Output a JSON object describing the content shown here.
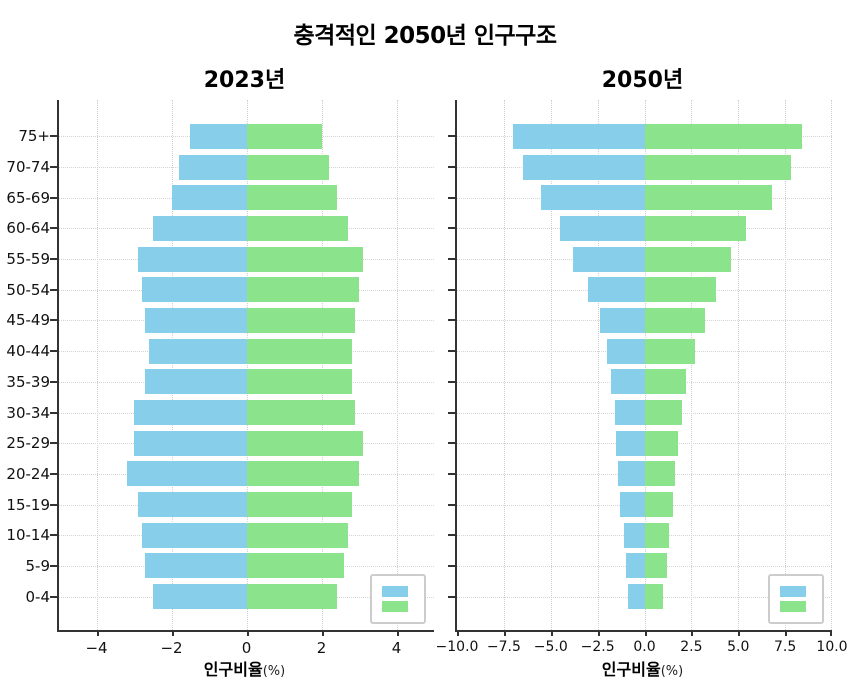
{
  "figure": {
    "title": "충격적인 2050년 인구구조"
  },
  "chart_data": [
    {
      "type": "bar",
      "subtype": "population-pyramid",
      "title": "2023년",
      "categories": [
        "75+",
        "70-74",
        "65-69",
        "60-64",
        "55-59",
        "50-54",
        "45-49",
        "40-44",
        "35-39",
        "30-34",
        "25-29",
        "20-24",
        "15-19",
        "10-14",
        "5-9",
        "0-4"
      ],
      "series": [
        {
          "name": "",
          "side": "left",
          "color": "#87CEEB",
          "values": [
            1.5,
            1.8,
            2.0,
            2.5,
            2.9,
            2.8,
            2.7,
            2.6,
            2.7,
            3.0,
            3.0,
            3.2,
            2.9,
            2.8,
            2.7,
            2.5
          ]
        },
        {
          "name": "",
          "side": "right",
          "color": "#8BE48B",
          "values": [
            2.0,
            2.2,
            2.4,
            2.7,
            3.1,
            3.0,
            2.9,
            2.8,
            2.8,
            2.9,
            3.1,
            3.0,
            2.8,
            2.7,
            2.6,
            2.4
          ]
        }
      ],
      "xlabel_main": "인구비율",
      "xlabel_unit": "(%)",
      "xlim": [
        -5,
        5
      ],
      "xticks": [
        -4,
        -2,
        0,
        2,
        4
      ],
      "xtick_labels": [
        "−4",
        "−2",
        "0",
        "2",
        "4"
      ],
      "ytick_labels_visible": true,
      "grid": true,
      "legend": {
        "position": "lower right",
        "labels": [
          "",
          ""
        ]
      }
    },
    {
      "type": "bar",
      "subtype": "population-pyramid",
      "title": "2050년",
      "categories": [
        "75+",
        "70-74",
        "65-69",
        "60-64",
        "55-59",
        "50-54",
        "45-49",
        "40-44",
        "35-39",
        "30-34",
        "25-29",
        "20-24",
        "15-19",
        "10-14",
        "5-9",
        "0-4"
      ],
      "series": [
        {
          "name": "",
          "side": "left",
          "color": "#87CEEB",
          "values": [
            7.0,
            6.5,
            5.5,
            4.5,
            3.8,
            3.0,
            2.4,
            2.0,
            1.8,
            1.6,
            1.5,
            1.4,
            1.3,
            1.1,
            1.0,
            0.9
          ]
        },
        {
          "name": "",
          "side": "right",
          "color": "#8BE48B",
          "values": [
            8.4,
            7.8,
            6.8,
            5.4,
            4.6,
            3.8,
            3.2,
            2.7,
            2.2,
            2.0,
            1.8,
            1.6,
            1.5,
            1.3,
            1.2,
            1.0
          ]
        }
      ],
      "xlabel_main": "인구비율",
      "xlabel_unit": "(%)",
      "xlim": [
        -10,
        10
      ],
      "xticks": [
        -10,
        -7.5,
        -5,
        -2.5,
        0,
        2.5,
        5,
        7.5,
        10
      ],
      "xtick_labels": [
        "−10.0",
        "−7.5",
        "−5.0",
        "−2.5",
        "0.0",
        "2.5",
        "5.0",
        "7.5",
        "10.0"
      ],
      "ytick_labels_visible": false,
      "grid": true,
      "legend": {
        "position": "lower right",
        "labels": [
          "",
          ""
        ]
      }
    }
  ]
}
